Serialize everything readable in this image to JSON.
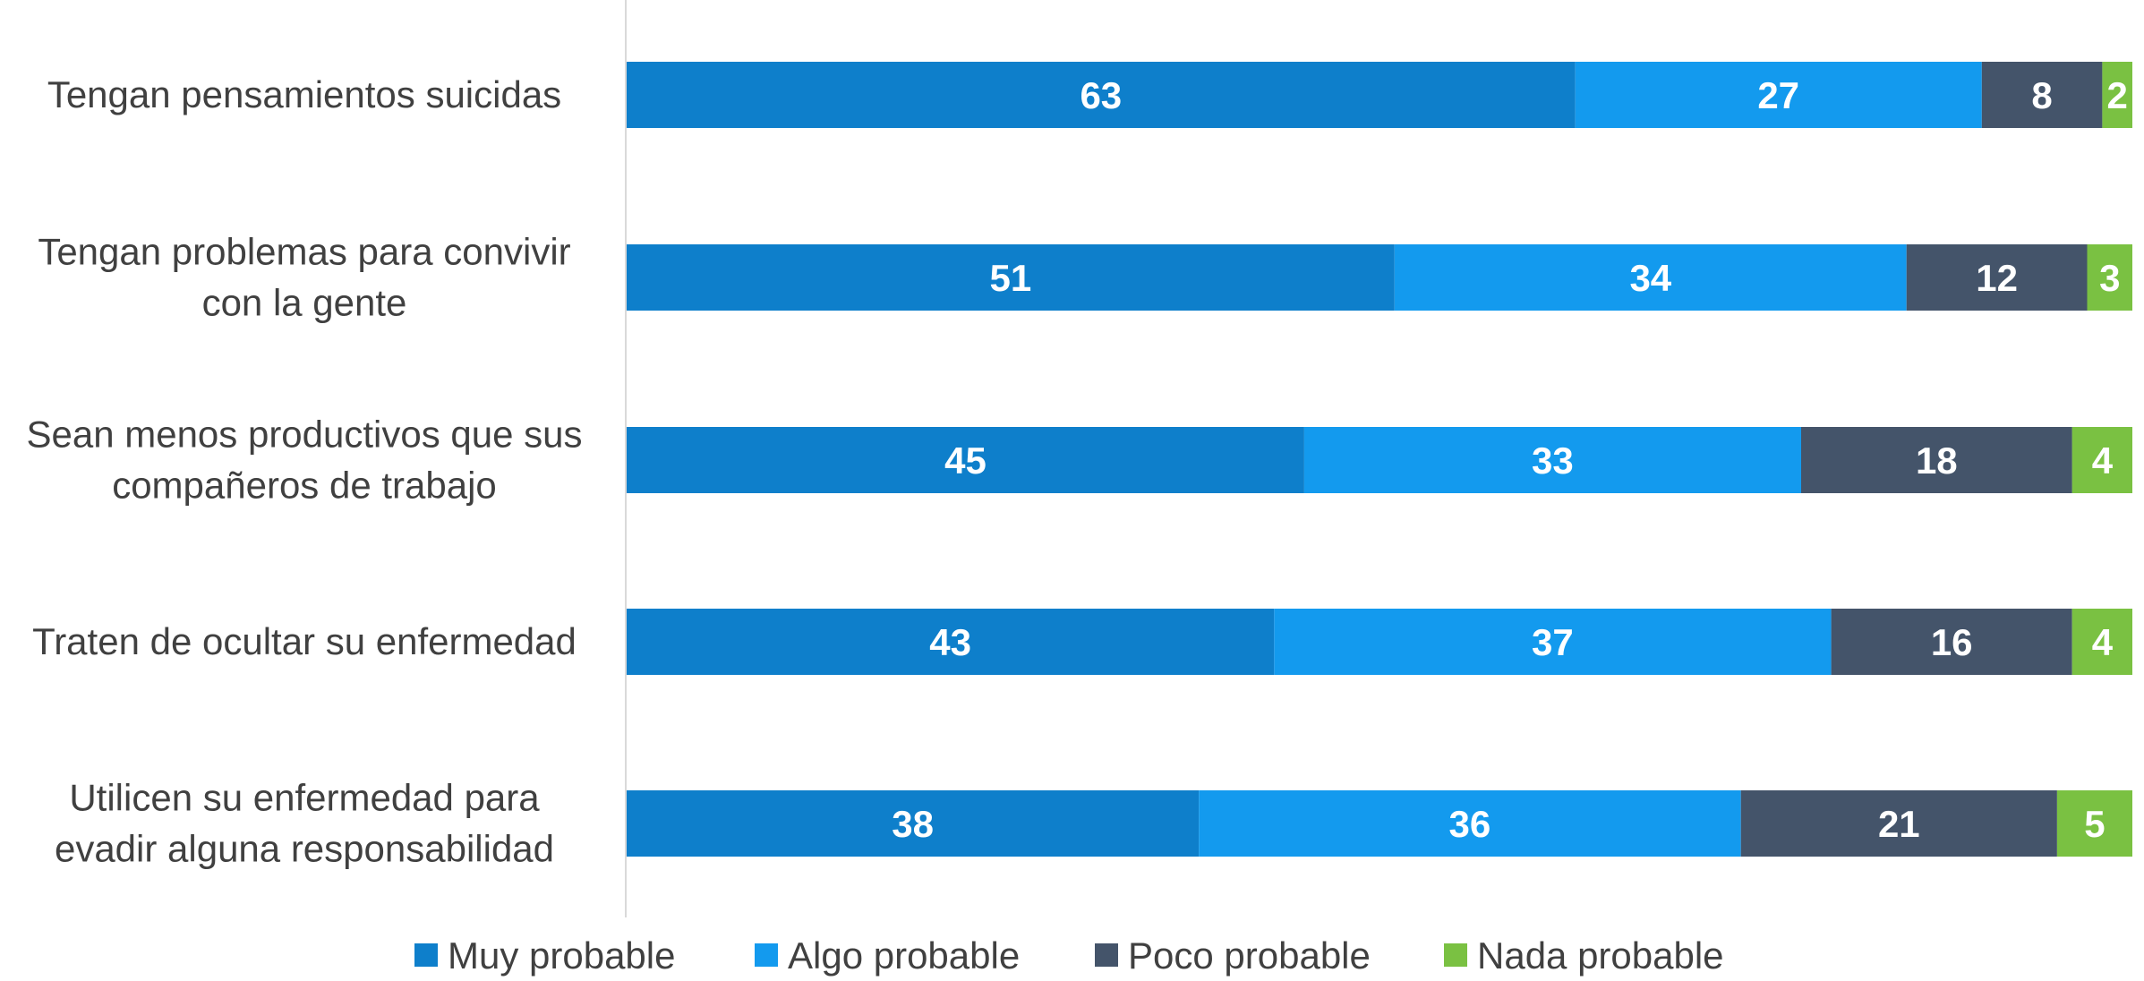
{
  "chart_data": {
    "type": "bar",
    "orientation": "horizontal",
    "stacked": true,
    "categories": [
      "Tengan pensamientos suicidas",
      "Tengan problemas para convivir con la gente",
      "Sean menos productivos que sus compañeros de trabajo",
      "Traten de ocultar su enfermedad",
      "Utilicen su enfermedad para evadir alguna responsabilidad"
    ],
    "category_lines": [
      [
        "Tengan pensamientos suicidas"
      ],
      [
        "Tengan problemas para convivir",
        "con la gente"
      ],
      [
        "Sean menos productivos que sus",
        "compañeros de trabajo"
      ],
      [
        "Traten de ocultar su enfermedad"
      ],
      [
        "Utilicen su enfermedad para",
        "evadir alguna responsabilidad"
      ]
    ],
    "series": [
      {
        "name": "Muy probable",
        "color": "#0E7FCB",
        "values": [
          63,
          51,
          45,
          43,
          38
        ]
      },
      {
        "name": "Algo probable",
        "color": "#139AEE",
        "values": [
          27,
          34,
          33,
          37,
          36
        ]
      },
      {
        "name": "Poco probable",
        "color": "#44546A",
        "values": [
          8,
          12,
          18,
          16,
          21
        ]
      },
      {
        "name": "Nada probable",
        "color": "#7AC142",
        "values": [
          2,
          3,
          4,
          4,
          5
        ]
      }
    ],
    "xlim": [
      0,
      100
    ],
    "grid": false,
    "data_labels": true,
    "legend_position": "bottom"
  }
}
